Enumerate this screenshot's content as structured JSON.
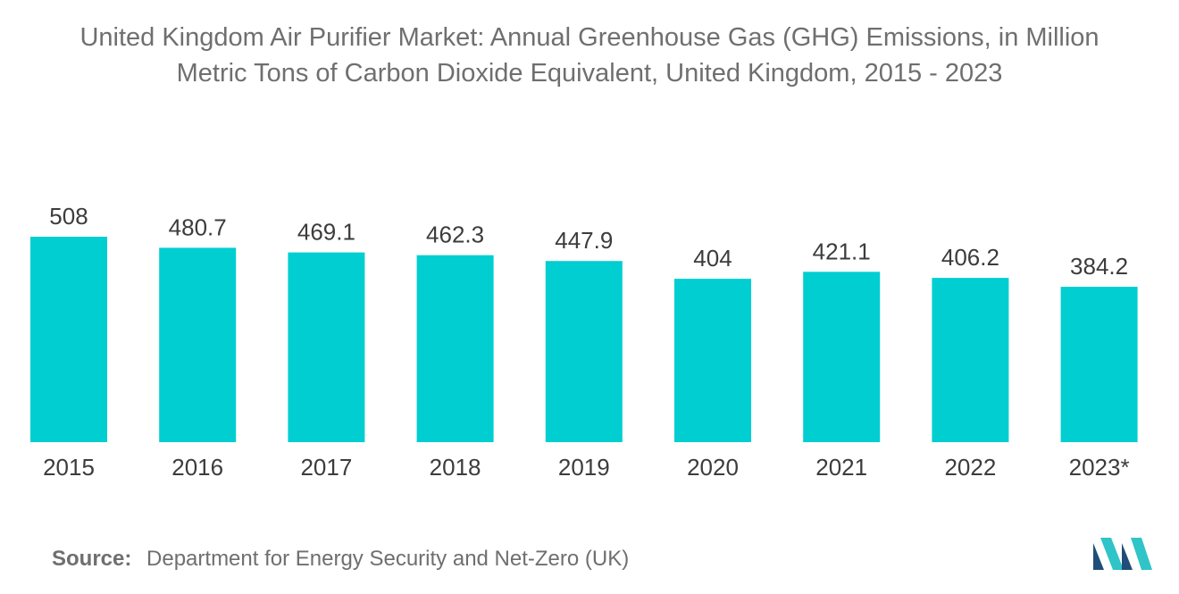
{
  "title": {
    "line1": "United Kingdom Air Purifier Market: Annual Greenhouse Gas (GHG) Emissions, in Million",
    "line2": "Metric Tons of Carbon Dioxide Equivalent, United Kingdom, 2015 - 2023"
  },
  "source": {
    "label": "Source:",
    "text": "Department for Energy Security and Net-Zero (UK)"
  },
  "colors": {
    "bar": "#00CED1",
    "text": "#3C3C3C",
    "title": "#6F6F6F",
    "logo_dark": "#1F4E79",
    "logo_light": "#2EC4C8"
  },
  "logo": {
    "icon": "mordor-intelligence-logo-icon"
  },
  "chart_data": {
    "type": "bar",
    "title": "United Kingdom Air Purifier Market: Annual Greenhouse Gas (GHG) Emissions, in Million Metric Tons of Carbon Dioxide Equivalent, United Kingdom, 2015 - 2023",
    "categories": [
      "2015",
      "2016",
      "2017",
      "2018",
      "2019",
      "2020",
      "2021",
      "2022",
      "2023*"
    ],
    "values": [
      508,
      480.7,
      469.1,
      462.3,
      447.9,
      404,
      421.1,
      406.2,
      384.2
    ],
    "value_labels": [
      "508",
      "480.7",
      "469.1",
      "462.3",
      "447.9",
      "404",
      "421.1",
      "406.2",
      "384.2"
    ],
    "xlabel": "",
    "ylabel": "",
    "ylim": [
      0,
      508
    ],
    "grid": false,
    "legend": "none"
  }
}
